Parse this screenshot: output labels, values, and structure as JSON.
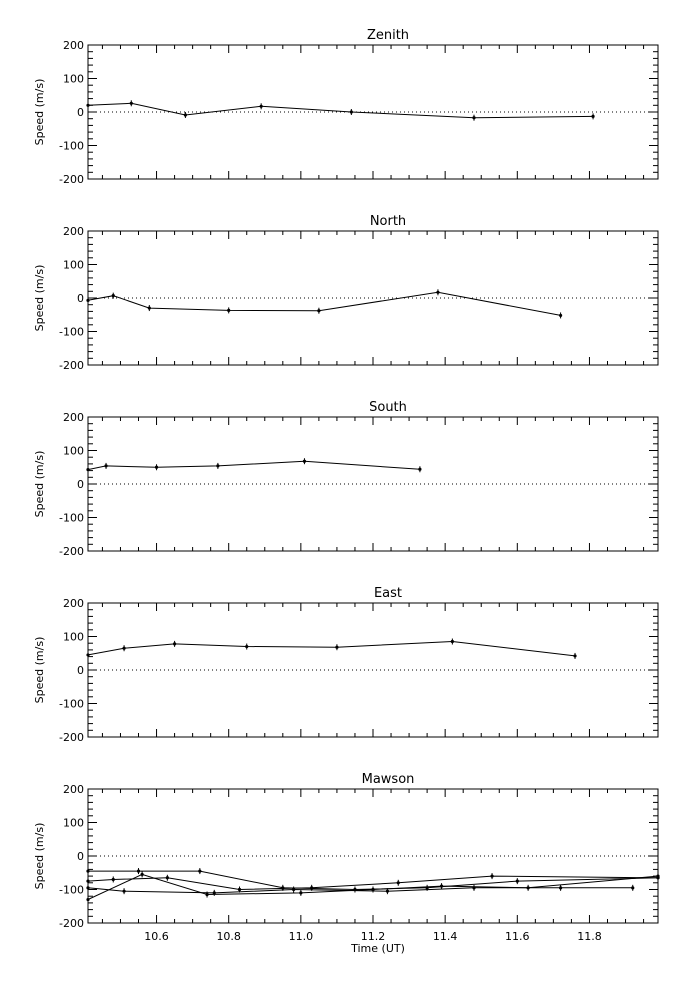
{
  "xlabel": "Time (UT)",
  "colors": {
    "line": "#000000",
    "background": "#ffffff"
  },
  "chart_data": [
    {
      "type": "line",
      "title": "Zenith",
      "ylabel": "Speed (m/s)",
      "ylim": [
        -200,
        200
      ],
      "xlim": [
        10.41,
        11.99
      ],
      "yticks": [
        200,
        100,
        0,
        -100,
        -200
      ],
      "zero_line": "dotted",
      "series": [
        {
          "x": [
            10.41,
            10.53,
            10.68,
            10.89,
            11.14,
            11.48,
            11.81
          ],
          "y": [
            20,
            26,
            -9,
            17,
            0,
            -17,
            -13
          ]
        }
      ]
    },
    {
      "type": "line",
      "title": "North",
      "ylabel": "Speed (m/s)",
      "ylim": [
        -200,
        200
      ],
      "xlim": [
        10.41,
        11.99
      ],
      "yticks": [
        200,
        100,
        0,
        -100,
        -200
      ],
      "zero_line": "dotted",
      "series": [
        {
          "x": [
            10.41,
            10.48,
            10.58,
            10.8,
            11.05,
            11.38,
            11.72
          ],
          "y": [
            -7,
            7,
            -30,
            -37,
            -38,
            17,
            -52
          ]
        }
      ]
    },
    {
      "type": "line",
      "title": "South",
      "ylabel": "Speed (m/s)",
      "ylim": [
        -200,
        200
      ],
      "xlim": [
        10.41,
        11.99
      ],
      "yticks": [
        200,
        100,
        0,
        -100,
        -200
      ],
      "zero_line": "dotted",
      "series": [
        {
          "x": [
            10.41,
            10.46,
            10.6,
            10.77,
            11.01,
            11.33
          ],
          "y": [
            43,
            54,
            50,
            54,
            68,
            44
          ]
        }
      ]
    },
    {
      "type": "line",
      "title": "East",
      "ylabel": "Speed (m/s)",
      "ylim": [
        -200,
        200
      ],
      "xlim": [
        10.41,
        11.99
      ],
      "yticks": [
        200,
        100,
        0,
        -100,
        -200
      ],
      "zero_line": "dotted",
      "series": [
        {
          "x": [
            10.41,
            10.51,
            10.65,
            10.85,
            11.1,
            11.42,
            11.76
          ],
          "y": [
            45,
            65,
            78,
            70,
            68,
            85,
            42
          ]
        }
      ]
    },
    {
      "type": "line",
      "title": "Mawson",
      "ylabel": "Speed (m/s)",
      "ylim": [
        -200,
        200
      ],
      "xlim": [
        10.41,
        11.99
      ],
      "yticks": [
        200,
        100,
        0,
        -100,
        -200
      ],
      "xticks": [
        10.6,
        10.8,
        11.0,
        11.2,
        11.4,
        11.6,
        11.8
      ],
      "zero_line": "dotted",
      "series": [
        {
          "x": [
            10.41,
            10.55,
            10.72,
            10.95,
            11.15,
            11.35,
            11.6,
            11.99
          ],
          "y": [
            -45,
            -45,
            -45,
            -95,
            -100,
            -95,
            -75,
            -65
          ]
        },
        {
          "x": [
            10.41,
            10.48,
            10.63,
            10.83,
            11.03,
            11.27,
            11.53,
            11.99
          ],
          "y": [
            -75,
            -70,
            -65,
            -100,
            -95,
            -80,
            -60,
            -65
          ]
        },
        {
          "x": [
            10.41,
            10.56,
            10.74,
            11.0,
            11.2,
            11.39,
            11.63,
            11.99
          ],
          "y": [
            -130,
            -55,
            -115,
            -110,
            -100,
            -90,
            -95,
            -60
          ]
        },
        {
          "x": [
            10.41,
            10.51,
            10.76,
            10.98,
            11.24,
            11.48,
            11.72,
            11.92
          ],
          "y": [
            -95,
            -105,
            -110,
            -100,
            -105,
            -95,
            -95,
            -95
          ]
        }
      ]
    }
  ]
}
